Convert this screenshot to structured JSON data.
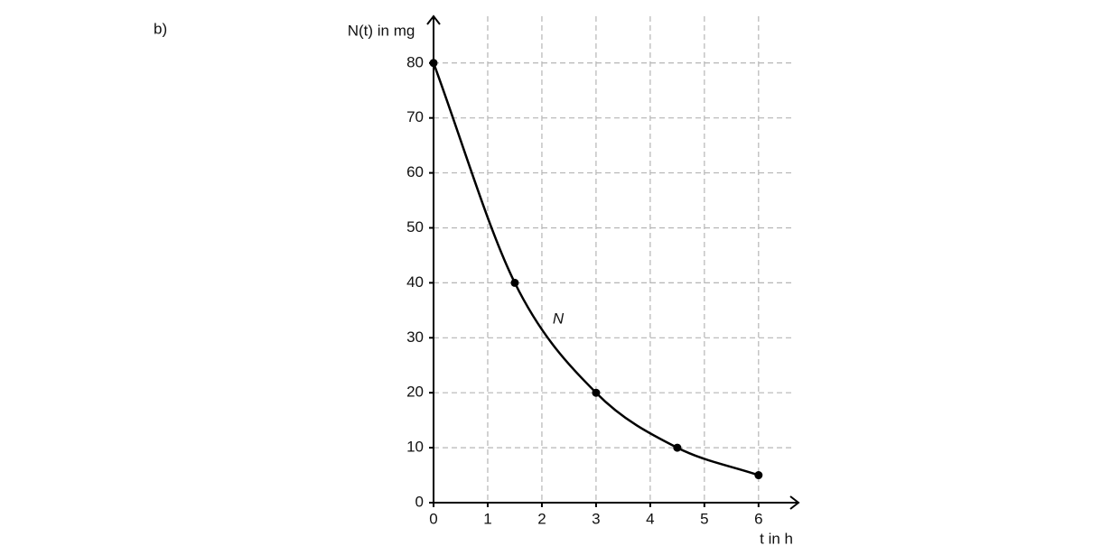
{
  "label": "b)",
  "chart_data": {
    "type": "line",
    "y_label": "N(t) in mg",
    "x_label": "t in h",
    "curve_label": "N",
    "x": [
      0,
      1.5,
      3,
      4.5,
      6
    ],
    "series": [
      {
        "name": "N",
        "color": "#000000",
        "values": [
          80,
          40,
          20,
          10,
          5
        ]
      }
    ],
    "xlim": [
      0,
      6.67
    ],
    "ylim": [
      0,
      88.5
    ],
    "xticks": [
      0,
      1,
      2,
      3,
      4,
      5,
      6
    ],
    "yticks": [
      0,
      10,
      20,
      30,
      40,
      50,
      60,
      70,
      80
    ],
    "grid": true
  }
}
